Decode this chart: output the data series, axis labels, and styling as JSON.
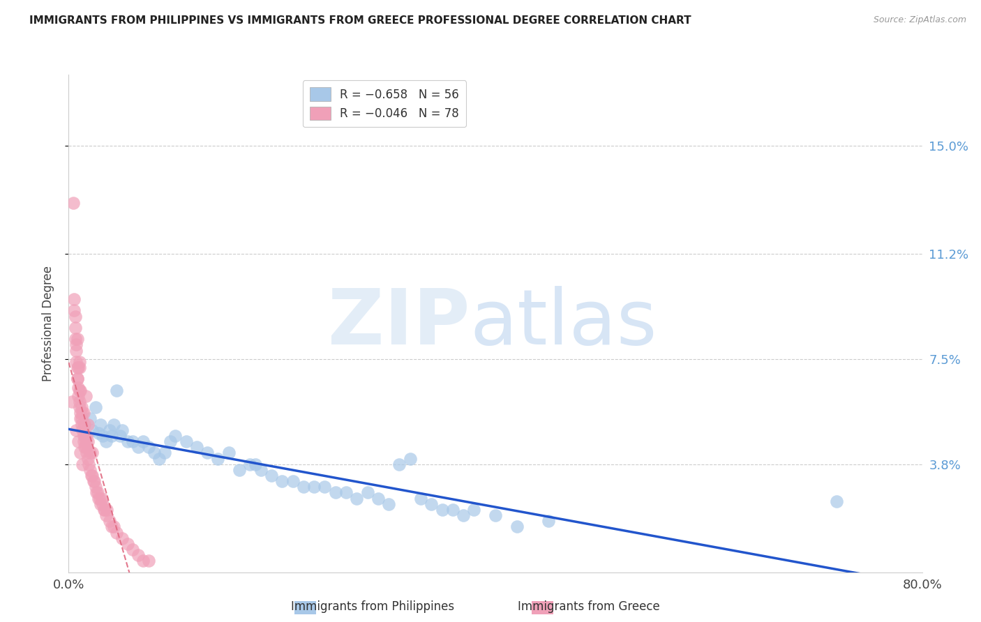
{
  "title": "IMMIGRANTS FROM PHILIPPINES VS IMMIGRANTS FROM GREECE PROFESSIONAL DEGREE CORRELATION CHART",
  "source": "Source: ZipAtlas.com",
  "ylabel": "Professional Degree",
  "xlim": [
    0.0,
    0.8
  ],
  "ylim": [
    0.0,
    0.175
  ],
  "yticks": [
    0.038,
    0.075,
    0.112,
    0.15
  ],
  "ytick_labels": [
    "3.8%",
    "7.5%",
    "11.2%",
    "15.0%"
  ],
  "color_philippines": "#a8c8e8",
  "color_greece": "#f0a0b8",
  "trendline_philippines": "#2255cc",
  "trendline_greece": "#e06880",
  "legend_label_philippines": "Immigrants from Philippines",
  "legend_label_greece": "Immigrants from Greece",
  "background_color": "#ffffff",
  "philippines_x": [
    0.02,
    0.022,
    0.025,
    0.028,
    0.03,
    0.032,
    0.035,
    0.038,
    0.04,
    0.042,
    0.045,
    0.048,
    0.05,
    0.055,
    0.06,
    0.065,
    0.07,
    0.075,
    0.08,
    0.085,
    0.09,
    0.095,
    0.1,
    0.11,
    0.12,
    0.13,
    0.14,
    0.15,
    0.16,
    0.17,
    0.175,
    0.18,
    0.19,
    0.2,
    0.21,
    0.22,
    0.23,
    0.24,
    0.25,
    0.26,
    0.27,
    0.28,
    0.29,
    0.3,
    0.31,
    0.32,
    0.33,
    0.34,
    0.35,
    0.36,
    0.37,
    0.38,
    0.4,
    0.42,
    0.45,
    0.72
  ],
  "philippines_y": [
    0.054,
    0.05,
    0.058,
    0.049,
    0.052,
    0.048,
    0.046,
    0.05,
    0.048,
    0.052,
    0.064,
    0.048,
    0.05,
    0.046,
    0.046,
    0.044,
    0.046,
    0.044,
    0.042,
    0.04,
    0.042,
    0.046,
    0.048,
    0.046,
    0.044,
    0.042,
    0.04,
    0.042,
    0.036,
    0.038,
    0.038,
    0.036,
    0.034,
    0.032,
    0.032,
    0.03,
    0.03,
    0.03,
    0.028,
    0.028,
    0.026,
    0.028,
    0.026,
    0.024,
    0.038,
    0.04,
    0.026,
    0.024,
    0.022,
    0.022,
    0.02,
    0.022,
    0.02,
    0.016,
    0.018,
    0.025
  ],
  "greece_x": [
    0.003,
    0.004,
    0.005,
    0.005,
    0.006,
    0.006,
    0.007,
    0.007,
    0.008,
    0.008,
    0.009,
    0.009,
    0.01,
    0.01,
    0.01,
    0.011,
    0.011,
    0.012,
    0.012,
    0.013,
    0.013,
    0.014,
    0.014,
    0.015,
    0.015,
    0.016,
    0.016,
    0.016,
    0.017,
    0.018,
    0.018,
    0.019,
    0.02,
    0.021,
    0.022,
    0.022,
    0.023,
    0.024,
    0.025,
    0.026,
    0.027,
    0.028,
    0.029,
    0.03,
    0.031,
    0.032,
    0.033,
    0.034,
    0.035,
    0.036,
    0.038,
    0.04,
    0.042,
    0.045,
    0.05,
    0.055,
    0.06,
    0.065,
    0.07,
    0.075,
    0.007,
    0.009,
    0.011,
    0.013,
    0.008,
    0.01,
    0.012,
    0.015,
    0.018,
    0.007,
    0.009,
    0.011,
    0.014,
    0.017,
    0.02,
    0.006,
    0.008,
    0.01
  ],
  "greece_y": [
    0.06,
    0.13,
    0.096,
    0.092,
    0.086,
    0.082,
    0.078,
    0.074,
    0.072,
    0.068,
    0.065,
    0.062,
    0.06,
    0.058,
    0.072,
    0.056,
    0.054,
    0.054,
    0.052,
    0.05,
    0.056,
    0.048,
    0.046,
    0.048,
    0.044,
    0.046,
    0.044,
    0.062,
    0.042,
    0.04,
    0.052,
    0.038,
    0.036,
    0.034,
    0.034,
    0.042,
    0.032,
    0.032,
    0.03,
    0.028,
    0.028,
    0.026,
    0.026,
    0.024,
    0.026,
    0.024,
    0.022,
    0.022,
    0.02,
    0.022,
    0.018,
    0.016,
    0.016,
    0.014,
    0.012,
    0.01,
    0.008,
    0.006,
    0.004,
    0.004,
    0.05,
    0.046,
    0.042,
    0.038,
    0.068,
    0.064,
    0.058,
    0.052,
    0.046,
    0.08,
    0.072,
    0.064,
    0.056,
    0.048,
    0.042,
    0.09,
    0.082,
    0.074
  ]
}
